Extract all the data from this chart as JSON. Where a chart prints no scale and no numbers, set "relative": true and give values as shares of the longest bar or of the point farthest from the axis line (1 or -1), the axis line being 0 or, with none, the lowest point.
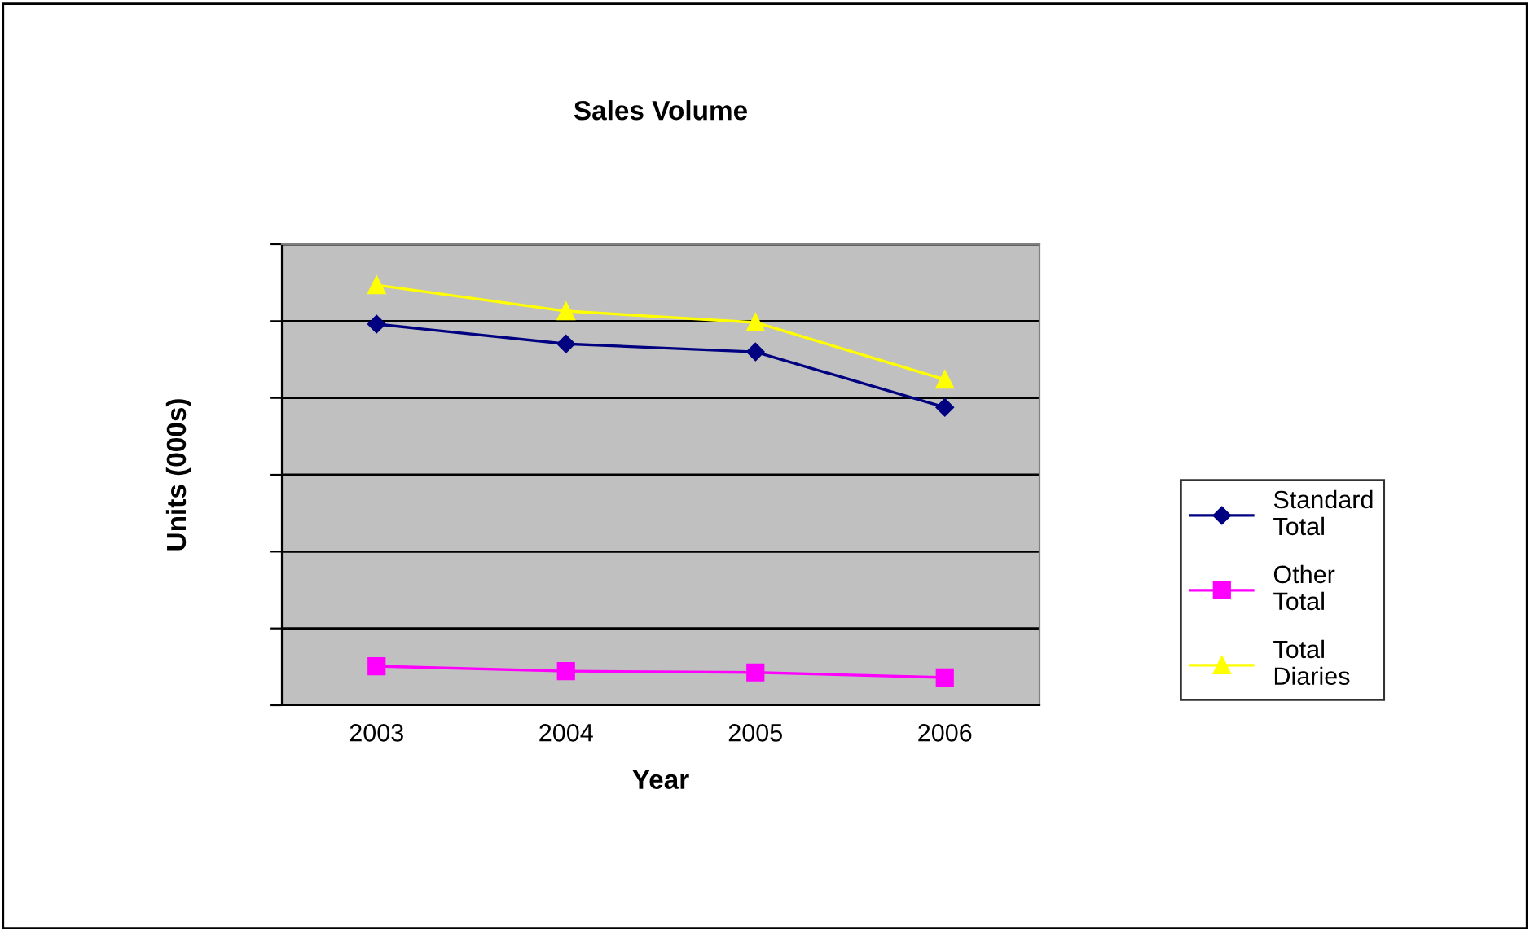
{
  "chart_data": {
    "type": "line",
    "title": "Sales Volume",
    "xlabel": "Year",
    "ylabel": "Units (000s)",
    "categories": [
      "2003",
      "2004",
      "2005",
      "2006"
    ],
    "relative": true,
    "grid": "y",
    "legend": "right",
    "tick_labels": "x",
    "series": [
      {
        "name": "Standard Total",
        "color": "#000080",
        "marker": "diamond",
        "values": [
          0.907,
          0.86,
          0.841,
          0.709
        ]
      },
      {
        "name": "Other Total",
        "color": "#ff00ff",
        "marker": "square",
        "values": [
          0.093,
          0.081,
          0.078,
          0.066
        ]
      },
      {
        "name": "Total Diaries",
        "color": "#ffff00",
        "marker": "triangle",
        "values": [
          1.0,
          0.938,
          0.911,
          0.775
        ]
      }
    ]
  }
}
